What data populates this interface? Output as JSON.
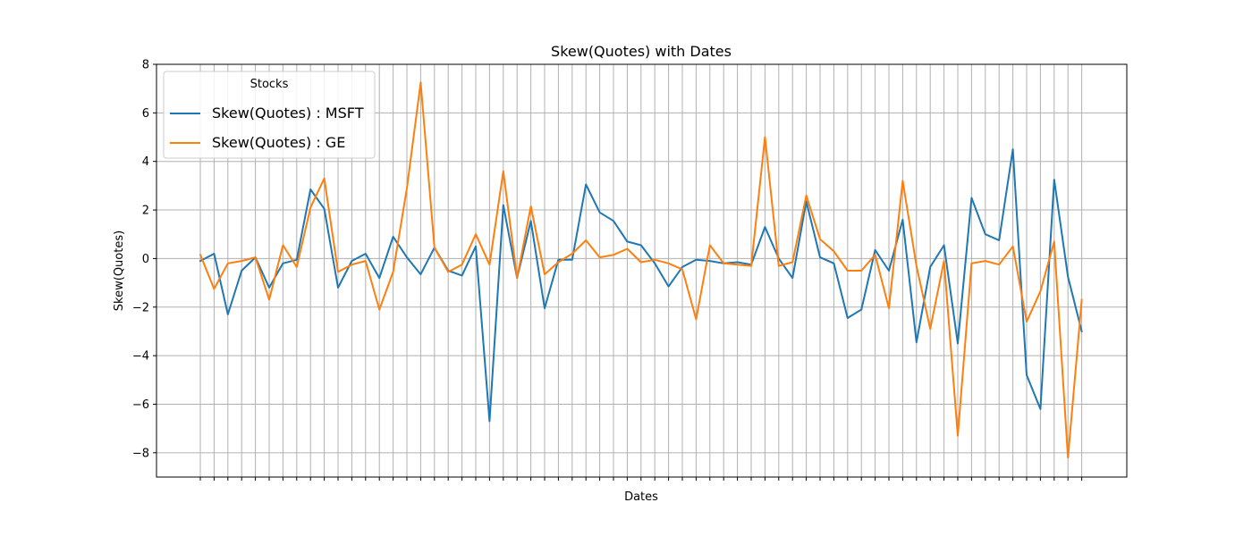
{
  "chart_data": {
    "type": "line",
    "title": "Skew(Quotes) with Dates",
    "xlabel": "Dates",
    "ylabel": "Skew(Quotes)",
    "ylim": [
      -9,
      8
    ],
    "yticks": [
      -8,
      -6,
      -4,
      -2,
      0,
      2,
      4,
      6,
      8
    ],
    "grid": true,
    "x_tick_count": 65,
    "legend": {
      "title": "Stocks",
      "placement": "top-left"
    },
    "series": [
      {
        "name": "Skew(Quotes) : MSFT",
        "color": "#1f77b4",
        "values": [
          -0.1,
          0.2,
          -2.3,
          -0.5,
          0.05,
          -1.2,
          -0.2,
          -0.05,
          2.85,
          2.05,
          -1.2,
          -0.1,
          0.2,
          -0.8,
          0.9,
          0.05,
          -0.65,
          0.45,
          -0.5,
          -0.7,
          0.5,
          -6.7,
          2.2,
          -0.8,
          1.55,
          -2.05,
          -0.05,
          -0.05,
          3.05,
          1.9,
          1.55,
          0.7,
          0.55,
          -0.2,
          -1.15,
          -0.35,
          -0.05,
          -0.1,
          -0.2,
          -0.15,
          -0.25,
          1.3,
          0.0,
          -0.8,
          2.35,
          0.05,
          -0.2,
          -2.45,
          -2.1,
          0.35,
          -0.5,
          1.6,
          -3.45,
          -0.35,
          0.55,
          -3.5,
          2.5,
          1.0,
          0.75,
          4.5,
          -4.8,
          -6.2,
          3.25,
          -0.75,
          -3.0
        ]
      },
      {
        "name": "Skew(Quotes) : GE",
        "color": "#ff7f0e",
        "values": [
          0.15,
          -1.25,
          -0.2,
          -0.1,
          0.05,
          -1.7,
          0.55,
          -0.35,
          2.1,
          3.3,
          -0.55,
          -0.25,
          -0.1,
          -2.1,
          -0.55,
          2.9,
          7.25,
          0.45,
          -0.55,
          -0.25,
          1.0,
          -0.25,
          3.6,
          -0.8,
          2.15,
          -0.65,
          -0.15,
          0.2,
          0.75,
          0.05,
          0.15,
          0.4,
          -0.15,
          -0.05,
          -0.2,
          -0.45,
          -2.5,
          0.55,
          -0.2,
          -0.25,
          -0.3,
          5.0,
          -0.3,
          -0.15,
          2.6,
          0.8,
          0.3,
          -0.5,
          -0.5,
          0.15,
          -2.05,
          3.2,
          -0.3,
          -2.9,
          -0.1,
          -7.3,
          -0.2,
          -0.1,
          -0.25,
          0.5,
          -2.6,
          -1.35,
          0.7,
          -8.2,
          -1.7
        ]
      }
    ]
  }
}
